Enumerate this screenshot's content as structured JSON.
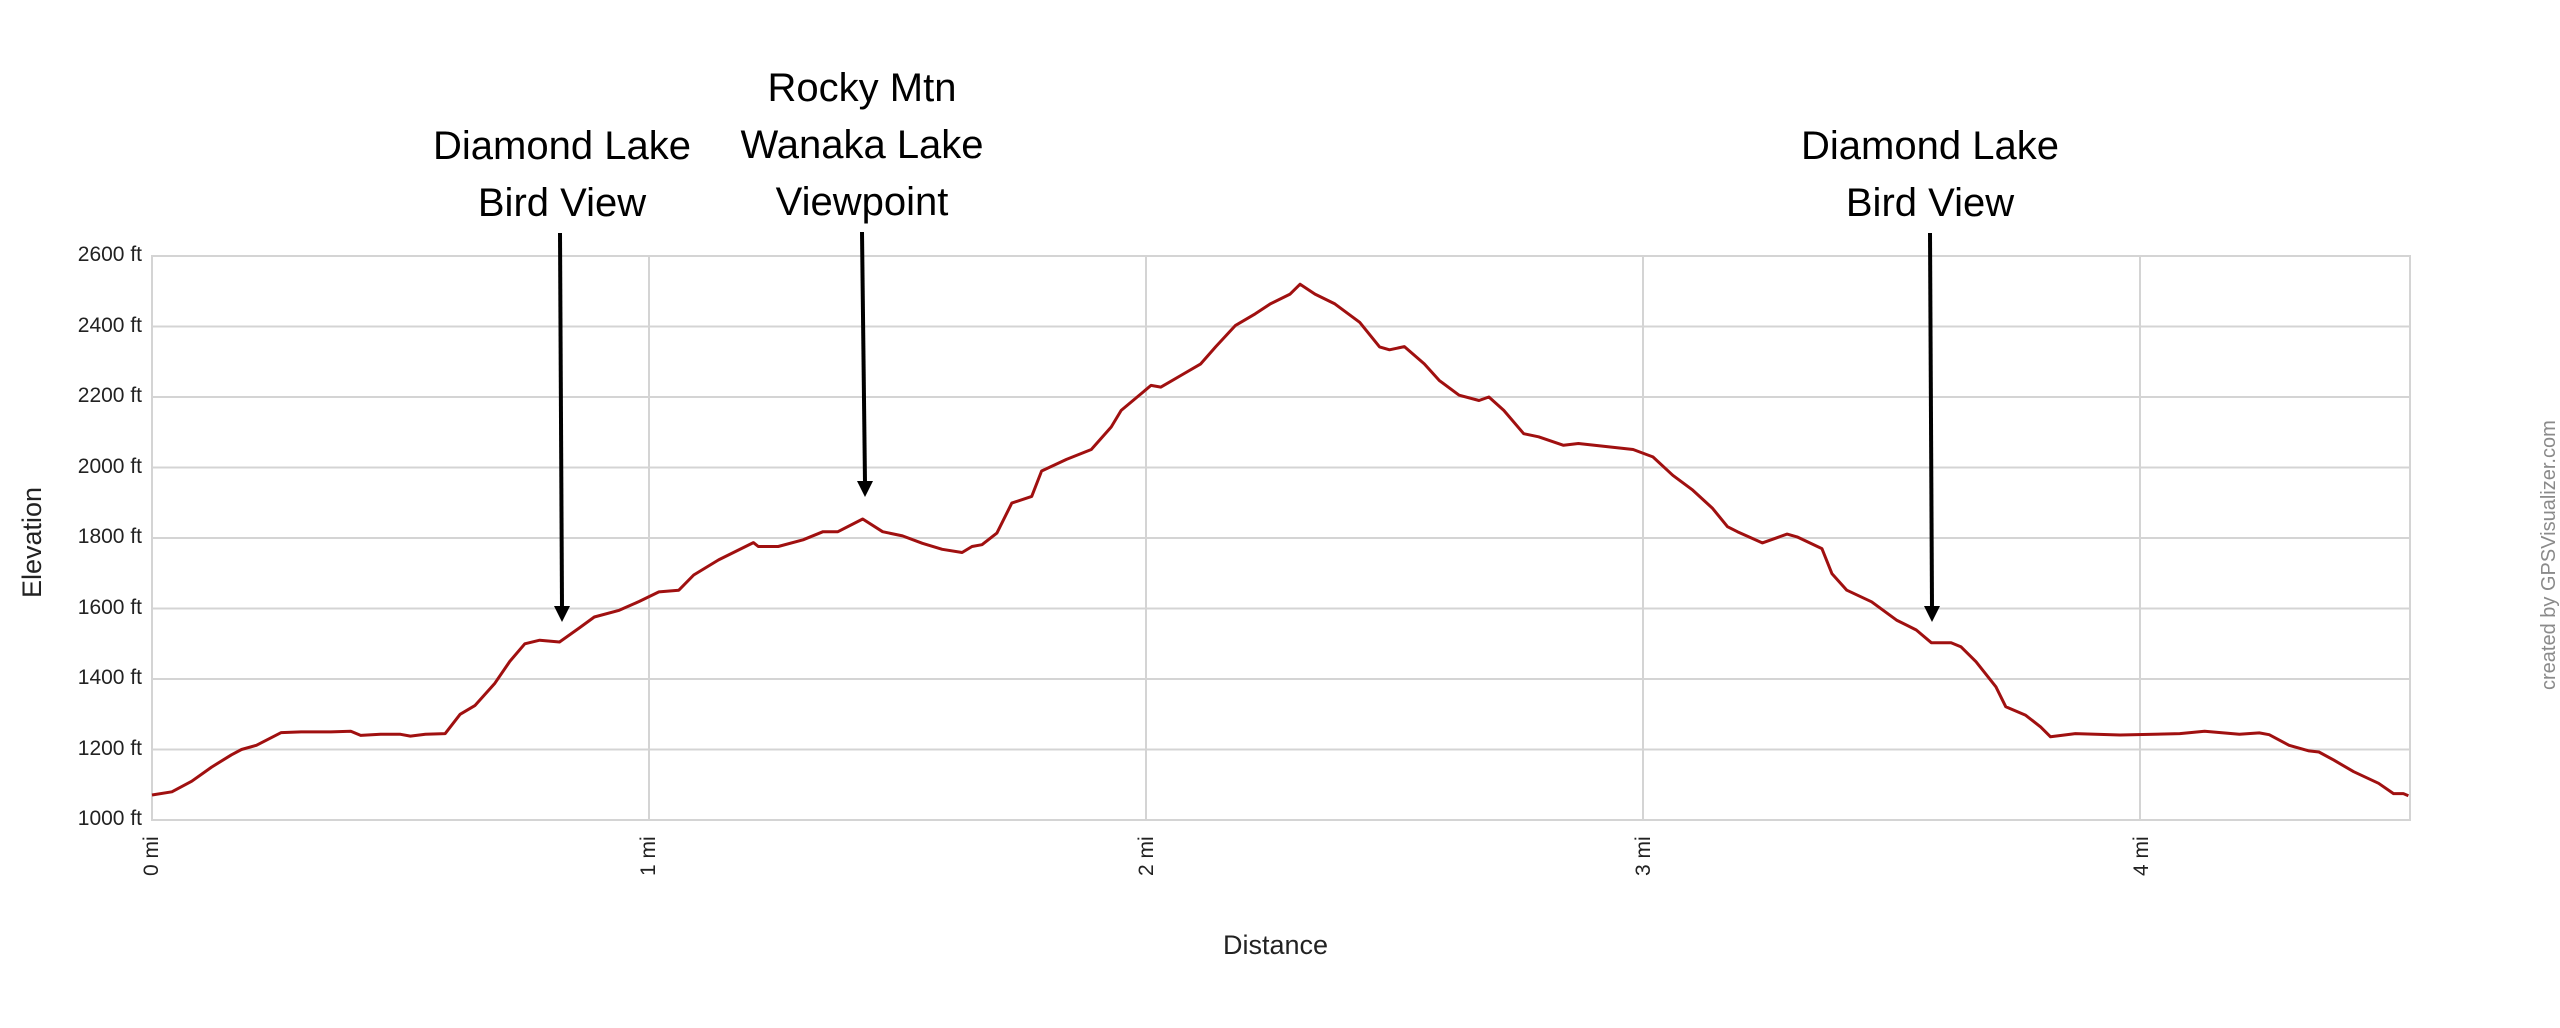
{
  "annotations": [
    {
      "lines": [
        "Diamond Lake",
        "Bird View"
      ],
      "x_mi": 0.82
    },
    {
      "lines": [
        "Rocky Mtn",
        "Wanaka Lake",
        "Viewpoint"
      ],
      "x_mi": 1.43
    },
    {
      "lines": [
        "Diamond Lake",
        "Bird View"
      ],
      "x_mi": 3.58
    }
  ],
  "axes": {
    "y_title": "Elevation",
    "x_title": "Distance",
    "y_ticks": [
      "2600 ft",
      "2400 ft",
      "2200 ft",
      "2000 ft",
      "1800 ft",
      "1600 ft",
      "1400 ft",
      "1200 ft",
      "1000 ft"
    ],
    "x_ticks": [
      "0 mi",
      "1 mi",
      "2 mi",
      "3 mi",
      "4 mi"
    ]
  },
  "watermark": "created by GPSVisualizer.com",
  "colors": {
    "line": "#a01010",
    "grid": "#d4d4d4",
    "arrow": "#000000"
  },
  "chart_data": {
    "type": "line",
    "title": "",
    "xlabel": "Distance",
    "ylabel": "Elevation",
    "xlim": [
      0,
      4.54
    ],
    "ylim": [
      1000,
      2600
    ],
    "x_unit": "mi",
    "y_unit": "ft",
    "grid": true,
    "legend": null,
    "x_ticks": [
      0,
      1,
      2,
      3,
      4
    ],
    "y_ticks": [
      1000,
      1200,
      1400,
      1600,
      1800,
      2000,
      2200,
      2400,
      2600
    ],
    "annotations": [
      {
        "text": "Diamond Lake Bird View",
        "x": 0.82,
        "y": 1505
      },
      {
        "text": "Rocky Mtn Wanaka Lake Viewpoint",
        "x": 1.43,
        "y": 1854
      },
      {
        "text": "Diamond Lake Bird View",
        "x": 3.58,
        "y": 1503
      }
    ],
    "series": [
      {
        "name": "Elevation",
        "x": [
          0.0,
          0.04,
          0.08,
          0.12,
          0.16,
          0.18,
          0.21,
          0.26,
          0.3,
          0.36,
          0.4,
          0.42,
          0.46,
          0.5,
          0.52,
          0.55,
          0.59,
          0.62,
          0.65,
          0.69,
          0.72,
          0.75,
          0.78,
          0.82,
          0.86,
          0.89,
          0.94,
          0.98,
          1.02,
          1.06,
          1.09,
          1.14,
          1.21,
          1.22,
          1.26,
          1.31,
          1.35,
          1.38,
          1.43,
          1.47,
          1.51,
          1.55,
          1.59,
          1.63,
          1.65,
          1.67,
          1.7,
          1.73,
          1.77,
          1.79,
          1.84,
          1.89,
          1.93,
          1.95,
          2.01,
          2.03,
          2.07,
          2.11,
          2.14,
          2.18,
          2.22,
          2.25,
          2.29,
          2.31,
          2.34,
          2.38,
          2.43,
          2.47,
          2.49,
          2.52,
          2.56,
          2.59,
          2.63,
          2.67,
          2.69,
          2.72,
          2.76,
          2.79,
          2.84,
          2.87,
          2.98,
          3.02,
          3.06,
          3.1,
          3.14,
          3.17,
          3.19,
          3.24,
          3.29,
          3.31,
          3.36,
          3.38,
          3.41,
          3.46,
          3.51,
          3.55,
          3.58,
          3.62,
          3.64,
          3.67,
          3.71,
          3.73,
          3.77,
          3.8,
          3.82,
          3.87,
          3.96,
          4.08,
          4.13,
          4.2,
          4.24,
          4.26,
          4.3,
          4.34,
          4.36,
          4.39,
          4.43,
          4.48,
          4.51,
          4.53,
          4.54
        ],
        "y": [
          1071,
          1080,
          1110,
          1150,
          1185,
          1200,
          1212,
          1248,
          1250,
          1250,
          1252,
          1240,
          1243,
          1243,
          1238,
          1243,
          1245,
          1300,
          1325,
          1388,
          1450,
          1500,
          1510,
          1505,
          1545,
          1576,
          1595,
          1620,
          1647,
          1652,
          1695,
          1738,
          1787,
          1776,
          1776,
          1795,
          1818,
          1818,
          1854,
          1818,
          1806,
          1785,
          1768,
          1759,
          1776,
          1781,
          1814,
          1899,
          1918,
          1990,
          2023,
          2051,
          2115,
          2162,
          2233,
          2228,
          2261,
          2294,
          2342,
          2403,
          2436,
          2464,
          2492,
          2520,
          2492,
          2464,
          2412,
          2342,
          2334,
          2343,
          2294,
          2247,
          2205,
          2190,
          2200,
          2162,
          2096,
          2087,
          2063,
          2068,
          2051,
          2030,
          1978,
          1936,
          1884,
          1832,
          1818,
          1786,
          1811,
          1803,
          1770,
          1699,
          1652,
          1619,
          1567,
          1539,
          1503,
          1503,
          1491,
          1449,
          1378,
          1321,
          1297,
          1264,
          1236,
          1245,
          1241,
          1245,
          1252,
          1243,
          1247,
          1242,
          1212,
          1196,
          1193,
          1170,
          1137,
          1104,
          1075,
          1075,
          1069
        ]
      }
    ]
  }
}
